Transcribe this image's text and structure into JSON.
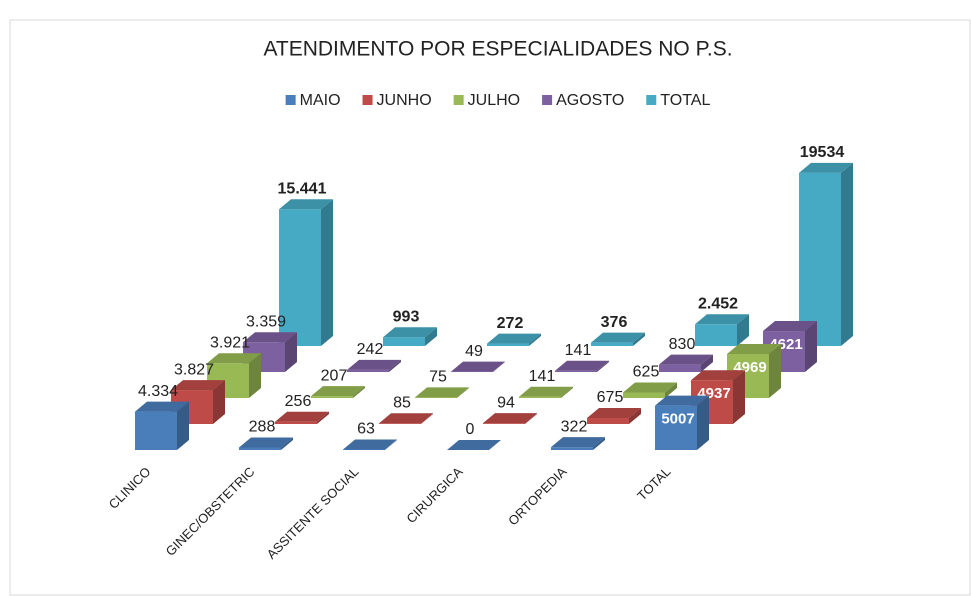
{
  "chart_data": {
    "type": "bar3d",
    "title": "ATENDIMENTO POR ESPECIALIDADES NO P.S.",
    "categories": [
      "CLINICO",
      "GINEC/OBSTETRIC",
      "ASSITENTE SOCIAL",
      "CIRURGICA",
      "ORTOPEDIA",
      "TOTAL"
    ],
    "series": [
      {
        "name": "MAIO",
        "color": "#4a7ebb",
        "values": [
          4334,
          288,
          63,
          0,
          322,
          5007
        ],
        "value_labels": [
          "4.334",
          "288",
          "63",
          "0",
          "322",
          "5007"
        ]
      },
      {
        "name": "JUNHO",
        "color": "#be4b48",
        "values": [
          3827,
          256,
          85,
          94,
          675,
          4937
        ],
        "value_labels": [
          "3.827",
          "256",
          "85",
          "94",
          "675",
          "4937"
        ]
      },
      {
        "name": "JULHO",
        "color": "#98b954",
        "values": [
          3921,
          207,
          75,
          141,
          625,
          4969
        ],
        "value_labels": [
          "3.921",
          "207",
          "75",
          "141",
          "625",
          "4969"
        ]
      },
      {
        "name": "AGOSTO",
        "color": "#7d60a0",
        "values": [
          3359,
          242,
          49,
          141,
          830,
          4621
        ],
        "value_labels": [
          "3.359",
          "242",
          "49",
          "141",
          "830",
          "4621"
        ]
      },
      {
        "name": "TOTAL",
        "color": "#46aac5",
        "values": [
          15441,
          993,
          272,
          376,
          2452,
          19534
        ],
        "value_labels": [
          "15.441",
          "993",
          "272",
          "376",
          "2.452",
          "19534"
        ]
      }
    ],
    "legend": "top"
  }
}
